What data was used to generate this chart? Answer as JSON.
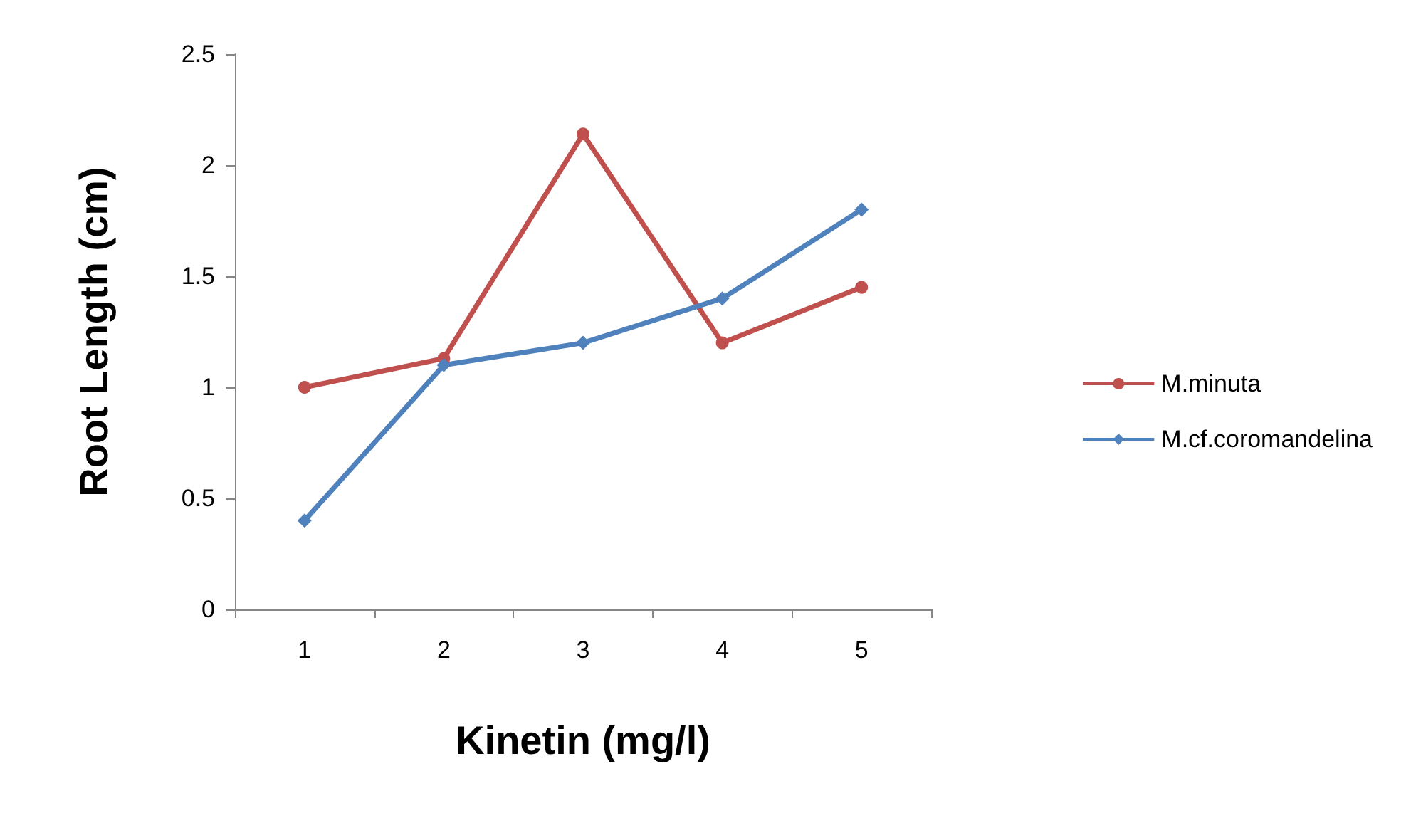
{
  "chart_data": {
    "type": "line",
    "xlabel": "Kinetin (mg/l)",
    "ylabel": "Root Length (cm)",
    "categories": [
      "1",
      "2",
      "3",
      "4",
      "5"
    ],
    "series": [
      {
        "name": "M.minuta",
        "color": "#c0504d",
        "marker": "circle",
        "values": [
          1,
          1.13,
          2.14,
          1.2,
          1.45
        ]
      },
      {
        "name": "M.cf.coromandelina",
        "color": "#4f81bd",
        "marker": "diamond",
        "values": [
          0.4,
          1.1,
          1.2,
          1.4,
          1.8
        ]
      }
    ],
    "ylim": [
      0,
      2.5
    ],
    "yticks": [
      0,
      0.5,
      1,
      1.5,
      2,
      2.5
    ],
    "grid": false,
    "legend": "right"
  }
}
